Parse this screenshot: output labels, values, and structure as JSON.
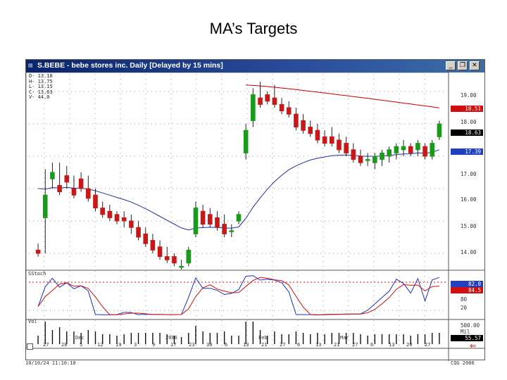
{
  "slide": {
    "title": "MA’s Targets"
  },
  "window": {
    "title": "S.BEBE - bebe stores inc. Daily [Delayed by 15 mins]",
    "menu_icon": "doc-icon",
    "buttons": {
      "minimize": "_",
      "restore": "❐",
      "close": "✕"
    }
  },
  "legend": [
    "D- 13.18",
    "H- 13.75",
    "L- 13.15",
    "C- 13.63",
    "V- 44.0"
  ],
  "price_axis": {
    "ticks": [
      "19.00",
      "18.00",
      "17.00",
      "16.00",
      "15.00",
      "14.00"
    ],
    "tags": [
      {
        "label": "18.51",
        "color": "#d01010"
      },
      {
        "label": "18.63",
        "color": "#000000"
      },
      {
        "label": "17.39",
        "color": "#2040c0"
      }
    ]
  },
  "stoch": {
    "label": "SStoch",
    "ticks": [
      "80",
      "20"
    ],
    "tags": [
      {
        "label": "82.0",
        "color": "#2040c0"
      },
      {
        "label": "84.5",
        "color": "#d01010"
      }
    ]
  },
  "volume": {
    "label": "Vol",
    "ticks": [
      "500.00",
      "Mil"
    ],
    "tag": {
      "label": "55.57",
      "color": "#000000"
    }
  },
  "x_axis": {
    "months": [
      "Dec",
      "2006",
      "Feb",
      "Mar"
    ],
    "dates": [
      "27",
      "28",
      "5",
      "12",
      "19",
      "3",
      "9",
      "17",
      "23",
      "30",
      "6",
      "13",
      "21",
      "27",
      "6",
      "13",
      "21",
      "27",
      "6",
      "13",
      "20",
      "27"
    ]
  },
  "footer": {
    "left": "10/10/24 11:10:10",
    "right": "CQG 2006"
  },
  "chart_data": {
    "type": "candlestick",
    "title": "S.BEBE - bebe stores inc. Daily",
    "ylim": [
      13.5,
      19.5
    ],
    "yticks": [
      19,
      18,
      17,
      16,
      15,
      14
    ],
    "candles": [
      [
        14.1,
        14.3,
        13.9,
        14.0
      ],
      [
        15.1,
        16.6,
        14.0,
        15.8
      ],
      [
        16.3,
        16.8,
        16.0,
        16.5
      ],
      [
        16.1,
        16.8,
        15.8,
        15.9
      ],
      [
        16.4,
        16.7,
        16.0,
        16.2
      ],
      [
        16.0,
        16.4,
        15.7,
        15.8
      ],
      [
        16.3,
        16.5,
        15.9,
        16.0
      ],
      [
        16.0,
        16.4,
        15.6,
        15.7
      ],
      [
        15.8,
        16.0,
        15.3,
        15.4
      ],
      [
        15.4,
        15.6,
        15.1,
        15.2
      ],
      [
        15.3,
        15.5,
        15.0,
        15.1
      ],
      [
        15.2,
        15.3,
        14.9,
        15.0
      ],
      [
        15.1,
        15.3,
        14.8,
        15.0
      ],
      [
        15.0,
        15.2,
        14.6,
        14.8
      ],
      [
        14.8,
        15.0,
        14.4,
        14.5
      ],
      [
        14.6,
        14.8,
        14.2,
        14.3
      ],
      [
        14.4,
        14.6,
        14.0,
        14.1
      ],
      [
        14.2,
        14.4,
        13.8,
        13.9
      ],
      [
        13.9,
        14.2,
        13.7,
        13.8
      ],
      [
        13.9,
        14.0,
        13.6,
        13.7
      ],
      [
        13.6,
        13.8,
        13.5,
        13.6
      ],
      [
        13.7,
        14.2,
        13.6,
        14.1
      ],
      [
        14.6,
        15.6,
        14.5,
        15.4
      ],
      [
        15.3,
        15.5,
        14.8,
        14.9
      ],
      [
        15.2,
        15.4,
        14.8,
        14.9
      ],
      [
        15.1,
        15.3,
        14.7,
        14.8
      ],
      [
        14.9,
        15.2,
        14.5,
        14.6
      ],
      [
        14.7,
        14.9,
        14.5,
        14.7
      ],
      [
        15.0,
        15.3,
        14.9,
        15.2
      ],
      [
        17.1,
        18.0,
        16.9,
        17.8
      ],
      [
        18.1,
        19.1,
        17.9,
        18.9
      ],
      [
        18.8,
        19.3,
        18.5,
        18.6
      ],
      [
        18.9,
        19.0,
        18.6,
        18.7
      ],
      [
        18.8,
        19.2,
        18.5,
        18.6
      ],
      [
        18.6,
        18.8,
        18.3,
        18.4
      ],
      [
        18.5,
        18.7,
        18.2,
        18.3
      ],
      [
        18.3,
        18.5,
        17.8,
        17.9
      ],
      [
        18.1,
        18.3,
        17.7,
        17.8
      ],
      [
        17.9,
        18.1,
        17.6,
        17.7
      ],
      [
        17.8,
        18.0,
        17.4,
        17.5
      ],
      [
        17.6,
        17.8,
        17.3,
        17.4
      ],
      [
        17.6,
        17.9,
        17.3,
        17.4
      ],
      [
        17.5,
        17.7,
        17.1,
        17.2
      ],
      [
        17.4,
        17.6,
        17.0,
        17.1
      ],
      [
        17.2,
        17.4,
        16.8,
        16.9
      ],
      [
        17.0,
        17.2,
        16.7,
        16.8
      ],
      [
        16.9,
        17.1,
        16.7,
        16.9
      ],
      [
        16.8,
        17.1,
        16.6,
        17.0
      ],
      [
        16.9,
        17.2,
        16.7,
        17.1
      ],
      [
        17.0,
        17.3,
        16.8,
        17.2
      ],
      [
        17.1,
        17.4,
        16.9,
        17.3
      ],
      [
        17.2,
        17.5,
        17.0,
        17.3
      ],
      [
        17.3,
        17.4,
        17.0,
        17.1
      ],
      [
        17.2,
        17.5,
        17.0,
        17.4
      ],
      [
        17.3,
        17.4,
        16.9,
        17.0
      ],
      [
        17.0,
        17.5,
        16.9,
        17.4
      ],
      [
        17.6,
        18.1,
        17.5,
        18.0
      ]
    ],
    "ma_long_start": 19.2,
    "ma_long_end": 18.5
  }
}
